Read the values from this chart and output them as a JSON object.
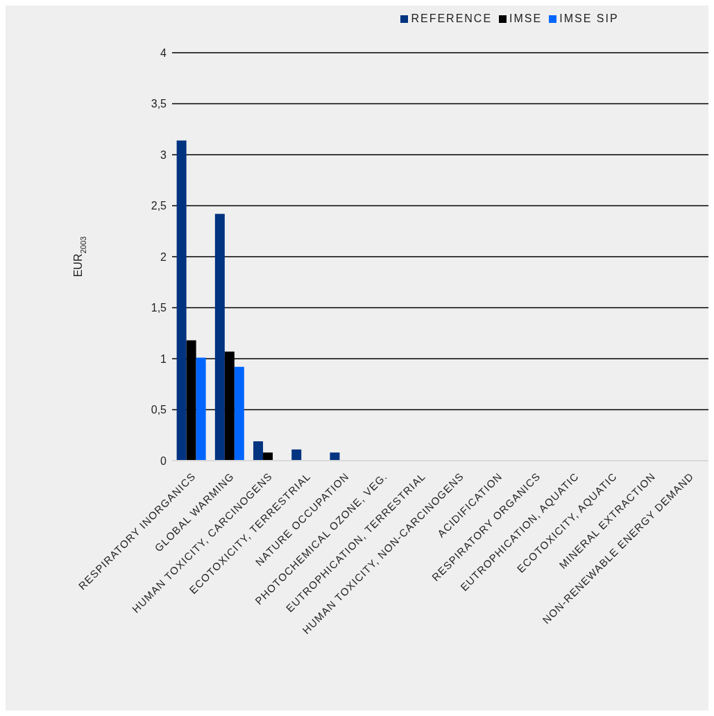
{
  "chart_data": {
    "type": "bar",
    "ylabel": "EUR$_{2003}$",
    "categories": [
      "RESPIRATORY INORGANICS",
      "GLOBAL WARMING",
      "HUMAN TOXICITY, CARCINOGENS",
      "ECOTOXICITY, TERRESTRIAL",
      "NATURE OCCUPATION",
      "PHOTOCHEMICAL OZONE, VEG.",
      "EUTROPHICATION, TERRESTRIAL",
      "HUMAN TOXICITY, NON-CARCINOGENS",
      "ACIDIFICATION",
      "RESPIRATORY ORGANICS",
      "EUTROPHICATION, AQUATIC",
      "ECOTOXICITY, AQUATIC",
      "MINERAL EXTRACTION",
      "NON-RENEWABLE ENERGY DEMAND"
    ],
    "series": [
      {
        "name": "REFERENCE",
        "color": "#003380",
        "values": [
          3.14,
          2.42,
          0.19,
          0.11,
          0.08,
          0,
          0,
          0,
          0,
          0,
          0,
          0,
          0,
          0
        ]
      },
      {
        "name": "IMSE",
        "color": "#000000",
        "values": [
          1.18,
          1.07,
          0.08,
          0,
          0,
          0,
          0,
          0,
          0,
          0,
          0,
          0,
          0,
          0
        ]
      },
      {
        "name": "IMSE SIP",
        "color": "#0066ff",
        "values": [
          1.01,
          0.92,
          0,
          0,
          0,
          0,
          0,
          0,
          0,
          0,
          0,
          0,
          0,
          0
        ]
      }
    ],
    "ylim": [
      0,
      4
    ],
    "yticks": [
      0,
      {
        "value": 0.5,
        "label": "0,5"
      },
      1,
      {
        "value": 1.5,
        "label": "1,5"
      },
      2,
      {
        "value": 2.5,
        "label": "2,5"
      },
      3,
      {
        "value": 3.5,
        "label": "3,5"
      },
      4
    ],
    "grid": "y",
    "legend": "top"
  }
}
